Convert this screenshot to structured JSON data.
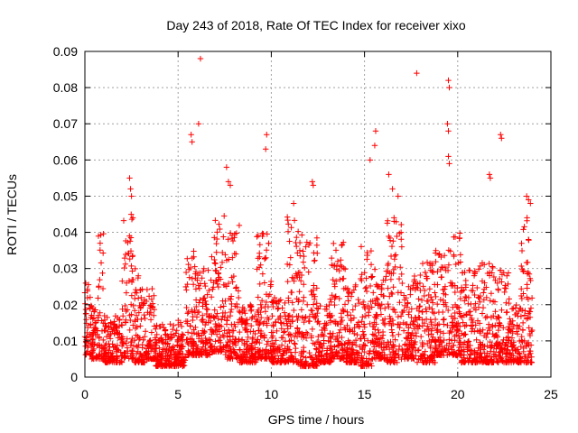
{
  "chart_data": {
    "type": "scatter",
    "title": "Day 243 of 2018, Rate Of TEC Index for receiver xixo",
    "xlabel": "GPS time / hours",
    "ylabel": "ROTI / TECUs",
    "xlim": [
      0,
      25
    ],
    "ylim": [
      0,
      0.09
    ],
    "x_ticks": [
      "0",
      "5",
      "10",
      "15",
      "20",
      "25"
    ],
    "y_ticks": [
      "0",
      "0.01",
      "0.02",
      "0.03",
      "0.04",
      "0.05",
      "0.06",
      "0.07",
      "0.08",
      "0.09"
    ],
    "grid": true,
    "marker": "plus",
    "colors": {
      "series": "#ff0000",
      "grid": "#a0a0a0",
      "axes": "#000000",
      "background": "#ffffff"
    },
    "series": [
      {
        "name": "",
        "bands": [
          {
            "x": [
              0.0,
              0.3
            ],
            "y": [
              0.006,
              0.026
            ]
          },
          {
            "x": [
              0.3,
              0.7
            ],
            "y": [
              0.005,
              0.02
            ]
          },
          {
            "x": [
              0.7,
              1.0
            ],
            "y": [
              0.005,
              0.04
            ]
          },
          {
            "x": [
              1.0,
              2.0
            ],
            "y": [
              0.004,
              0.017
            ]
          },
          {
            "x": [
              2.0,
              2.6
            ],
            "y": [
              0.005,
              0.045
            ]
          },
          {
            "x": [
              2.6,
              3.2
            ],
            "y": [
              0.004,
              0.03
            ]
          },
          {
            "x": [
              3.2,
              3.8
            ],
            "y": [
              0.005,
              0.025
            ]
          },
          {
            "x": [
              3.8,
              5.0
            ],
            "y": [
              0.003,
              0.015
            ]
          },
          {
            "x": [
              5.0,
              5.4
            ],
            "y": [
              0.003,
              0.016
            ]
          },
          {
            "x": [
              5.4,
              6.0
            ],
            "y": [
              0.006,
              0.035
            ]
          },
          {
            "x": [
              6.0,
              6.8
            ],
            "y": [
              0.006,
              0.03
            ]
          },
          {
            "x": [
              6.8,
              7.5
            ],
            "y": [
              0.007,
              0.045
            ]
          },
          {
            "x": [
              7.5,
              8.3
            ],
            "y": [
              0.005,
              0.042
            ]
          },
          {
            "x": [
              8.3,
              9.2
            ],
            "y": [
              0.004,
              0.02
            ]
          },
          {
            "x": [
              9.2,
              10.0
            ],
            "y": [
              0.005,
              0.04
            ]
          },
          {
            "x": [
              10.0,
              10.8
            ],
            "y": [
              0.004,
              0.022
            ]
          },
          {
            "x": [
              10.8,
              11.5
            ],
            "y": [
              0.004,
              0.045
            ]
          },
          {
            "x": [
              11.5,
              12.5
            ],
            "y": [
              0.003,
              0.04
            ]
          },
          {
            "x": [
              12.5,
              13.2
            ],
            "y": [
              0.004,
              0.022
            ]
          },
          {
            "x": [
              13.2,
              14.0
            ],
            "y": [
              0.005,
              0.038
            ]
          },
          {
            "x": [
              14.0,
              14.8
            ],
            "y": [
              0.004,
              0.028
            ]
          },
          {
            "x": [
              14.8,
              15.4
            ],
            "y": [
              0.003,
              0.038
            ]
          },
          {
            "x": [
              15.4,
              16.2
            ],
            "y": [
              0.005,
              0.03
            ]
          },
          {
            "x": [
              16.2,
              17.0
            ],
            "y": [
              0.004,
              0.045
            ]
          },
          {
            "x": [
              17.0,
              17.8
            ],
            "y": [
              0.005,
              0.028
            ]
          },
          {
            "x": [
              17.8,
              18.8
            ],
            "y": [
              0.004,
              0.032
            ]
          },
          {
            "x": [
              18.8,
              19.4
            ],
            "y": [
              0.006,
              0.035
            ]
          },
          {
            "x": [
              19.4,
              20.2
            ],
            "y": [
              0.006,
              0.04
            ]
          },
          {
            "x": [
              20.2,
              21.2
            ],
            "y": [
              0.004,
              0.03
            ]
          },
          {
            "x": [
              21.2,
              22.0
            ],
            "y": [
              0.004,
              0.032
            ]
          },
          {
            "x": [
              22.0,
              22.8
            ],
            "y": [
              0.004,
              0.03
            ]
          },
          {
            "x": [
              22.8,
              23.4
            ],
            "y": [
              0.004,
              0.02
            ]
          },
          {
            "x": [
              23.4,
              24.0
            ],
            "y": [
              0.004,
              0.045
            ]
          }
        ],
        "points": [
          [
            2.4,
            0.055
          ],
          [
            2.45,
            0.052
          ],
          [
            2.5,
            0.05
          ],
          [
            5.7,
            0.067
          ],
          [
            5.75,
            0.065
          ],
          [
            6.2,
            0.088
          ],
          [
            6.1,
            0.07
          ],
          [
            7.6,
            0.058
          ],
          [
            7.7,
            0.054
          ],
          [
            7.8,
            0.053
          ],
          [
            9.75,
            0.067
          ],
          [
            9.7,
            0.063
          ],
          [
            11.2,
            0.048
          ],
          [
            12.2,
            0.054
          ],
          [
            12.25,
            0.053
          ],
          [
            15.3,
            0.06
          ],
          [
            15.6,
            0.068
          ],
          [
            15.55,
            0.064
          ],
          [
            16.3,
            0.056
          ],
          [
            16.5,
            0.052
          ],
          [
            16.8,
            0.05
          ],
          [
            17.8,
            0.084
          ],
          [
            19.5,
            0.082
          ],
          [
            19.55,
            0.08
          ],
          [
            19.45,
            0.07
          ],
          [
            19.5,
            0.068
          ],
          [
            19.5,
            0.061
          ],
          [
            19.55,
            0.059
          ],
          [
            21.7,
            0.056
          ],
          [
            21.75,
            0.055
          ],
          [
            22.3,
            0.067
          ],
          [
            22.35,
            0.066
          ],
          [
            23.7,
            0.05
          ],
          [
            23.8,
            0.049
          ],
          [
            23.9,
            0.048
          ]
        ]
      }
    ]
  }
}
